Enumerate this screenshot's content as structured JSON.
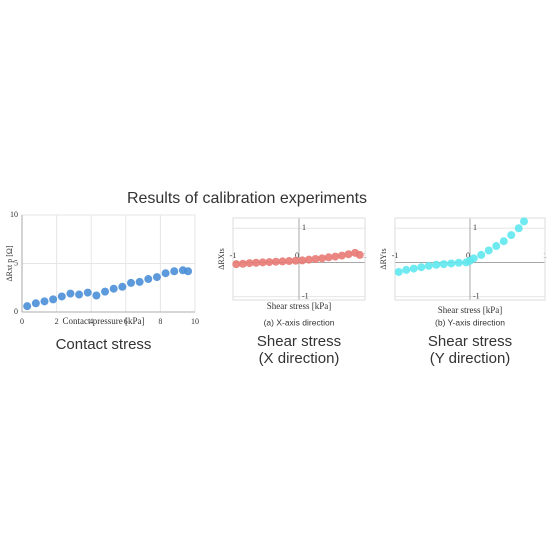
{
  "title": "Results of calibration experiments",
  "chart_data": [
    {
      "type": "scatter",
      "x_label": "Contact pressure [kPa]",
      "y_label": "ΔRxt p [Ω]",
      "caption": [
        "Contact stress"
      ],
      "color": "#4a8fd8",
      "grid": true,
      "axis_position": "box",
      "xlim": [
        0,
        10
      ],
      "ylim": [
        0,
        10
      ],
      "xticks": [
        0,
        2,
        4,
        6,
        8,
        10
      ],
      "yticks": [
        0,
        5,
        10
      ],
      "x": [
        0.3,
        0.8,
        1.3,
        1.8,
        2.3,
        2.8,
        3.3,
        3.8,
        4.3,
        4.8,
        5.3,
        5.8,
        6.3,
        6.8,
        7.3,
        7.8,
        8.3,
        8.8,
        9.3,
        9.6
      ],
      "values": [
        0.6,
        0.9,
        1.1,
        1.3,
        1.6,
        1.9,
        1.8,
        2.0,
        1.7,
        2.1,
        2.4,
        2.6,
        3.0,
        3.1,
        3.4,
        3.6,
        4.0,
        4.2,
        4.3,
        4.2
      ]
    },
    {
      "type": "scatter",
      "x_label": "Shear stress [kPa]",
      "y_label": "ΔRXts",
      "subcaption": "(a) X-axis direction",
      "caption": [
        "Shear stress",
        "(X direction)"
      ],
      "color": "#e87a74",
      "grid": true,
      "axis_position": "center",
      "xlim": [
        -1,
        1
      ],
      "ylim": [
        -1.1,
        1.3
      ],
      "xticks": [
        -1,
        0,
        1
      ],
      "yticks": [
        -1,
        1
      ],
      "x": [
        -0.95,
        -0.85,
        -0.75,
        -0.65,
        -0.55,
        -0.45,
        -0.35,
        -0.25,
        -0.15,
        -0.05,
        0.05,
        0.15,
        0.25,
        0.35,
        0.45,
        0.55,
        0.65,
        0.75,
        0.85,
        0.92
      ],
      "values": [
        -0.05,
        -0.04,
        -0.02,
        -0.01,
        0,
        0.01,
        0.02,
        0.03,
        0.04,
        0.05,
        0.06,
        0.08,
        0.1,
        0.12,
        0.15,
        0.17,
        0.2,
        0.24,
        0.28,
        0.22
      ]
    },
    {
      "type": "scatter",
      "x_label": "Shear stress [kPa]",
      "y_label": "ΔRYts",
      "subcaption": "(b) Y-axis direction",
      "caption": [
        "Shear stress",
        "(Y direction)"
      ],
      "color": "#5ee8ee",
      "grid": true,
      "axis_position": "center",
      "xlim": [
        -1,
        1
      ],
      "ylim": [
        -1.1,
        1.3
      ],
      "xticks": [
        -1,
        0,
        1
      ],
      "yticks": [
        -1,
        1
      ],
      "x": [
        -0.95,
        -0.85,
        -0.75,
        -0.65,
        -0.55,
        -0.45,
        -0.35,
        -0.25,
        -0.15,
        -0.05,
        0,
        0.05,
        0.15,
        0.25,
        0.35,
        0.45,
        0.55,
        0.65,
        0.72
      ],
      "values": [
        -0.28,
        -0.22,
        -0.18,
        -0.14,
        -0.1,
        -0.07,
        -0.05,
        -0.03,
        -0.01,
        0,
        0.05,
        0.12,
        0.22,
        0.35,
        0.48,
        0.62,
        0.8,
        1.0,
        1.2
      ]
    }
  ]
}
